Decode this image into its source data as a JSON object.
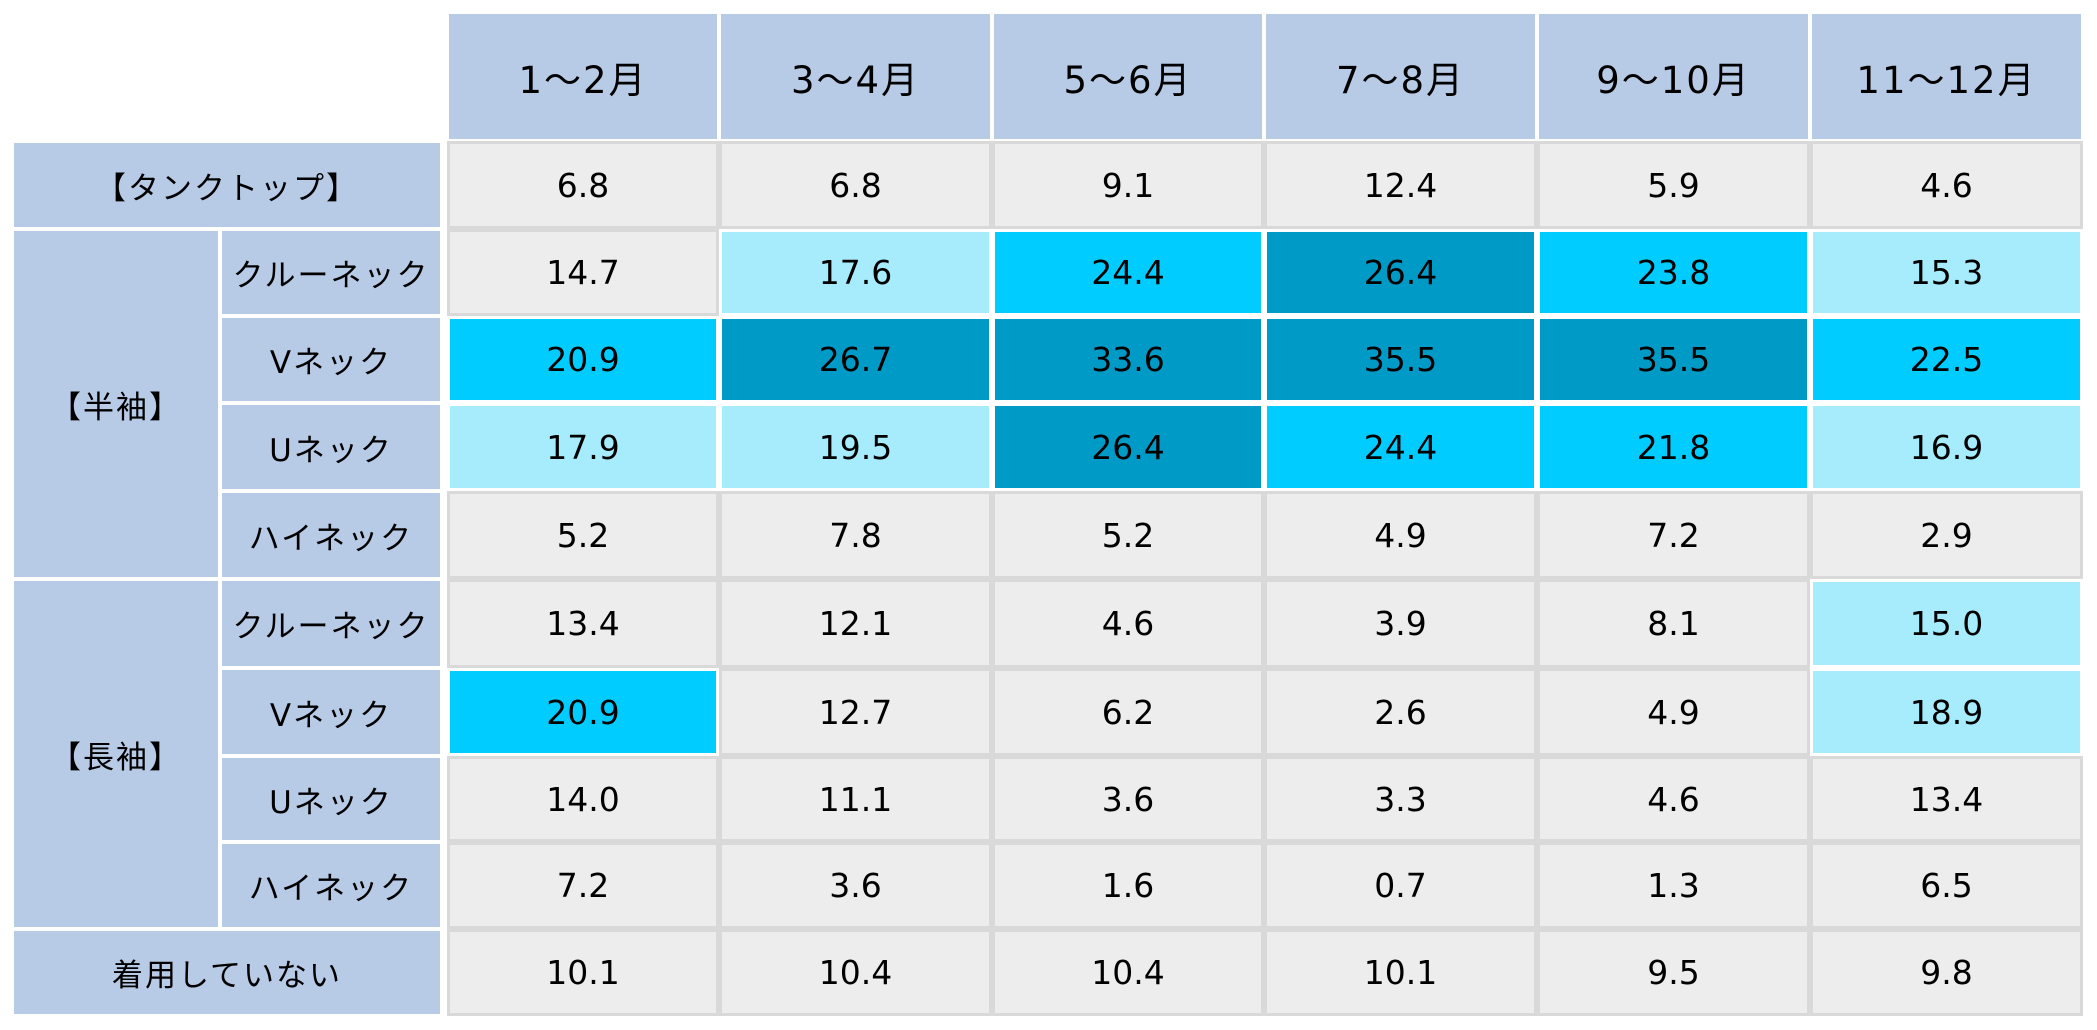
{
  "palette": {
    "header_bg": "#b7cae6",
    "neutral_bg": "#ededed",
    "neutral_border": "#d9d9d9",
    "light_bg": "#a6ecfd",
    "mid_bg": "#00ccff",
    "dark_bg": "#009ac6"
  },
  "chart_data": {
    "type": "heatmap",
    "title": "",
    "columns": [
      "1～2月",
      "3～4月",
      "5～6月",
      "7～8月",
      "9～10月",
      "11～12月"
    ],
    "groups": [
      {
        "name": "【タンクトップ】",
        "rows": [
          ""
        ]
      },
      {
        "name": "【半袖】",
        "rows": [
          "クルーネック",
          "Vネック",
          "Uネック",
          "ハイネック"
        ]
      },
      {
        "name": "【長袖】",
        "rows": [
          "クルーネック",
          "Vネック",
          "Uネック",
          "ハイネック"
        ]
      },
      {
        "name": "着用していない",
        "rows": [
          ""
        ]
      }
    ],
    "values": [
      [
        6.8,
        6.8,
        9.1,
        12.4,
        5.9,
        4.6
      ],
      [
        14.7,
        17.6,
        24.4,
        26.4,
        23.8,
        15.3
      ],
      [
        20.9,
        26.7,
        33.6,
        35.5,
        35.5,
        22.5
      ],
      [
        17.9,
        19.5,
        26.4,
        24.4,
        21.8,
        16.9
      ],
      [
        5.2,
        7.8,
        5.2,
        4.9,
        7.2,
        2.9
      ],
      [
        13.4,
        12.1,
        4.6,
        3.9,
        8.1,
        15.0
      ],
      [
        20.9,
        12.7,
        6.2,
        2.6,
        4.9,
        18.9
      ],
      [
        14.0,
        11.1,
        3.6,
        3.3,
        4.6,
        13.4
      ],
      [
        7.2,
        3.6,
        1.6,
        0.7,
        1.3,
        6.5
      ],
      [
        10.1,
        10.4,
        10.4,
        10.1,
        9.5,
        9.8
      ]
    ],
    "shade_levels": [
      "neutral",
      "light",
      "mid",
      "dark"
    ],
    "shading": [
      [
        0,
        0,
        0,
        0,
        0,
        0
      ],
      [
        0,
        1,
        2,
        3,
        2,
        1
      ],
      [
        2,
        3,
        3,
        3,
        3,
        2
      ],
      [
        1,
        1,
        3,
        2,
        2,
        1
      ],
      [
        0,
        0,
        0,
        0,
        0,
        0
      ],
      [
        0,
        0,
        0,
        0,
        0,
        1
      ],
      [
        2,
        0,
        0,
        0,
        0,
        1
      ],
      [
        0,
        0,
        0,
        0,
        0,
        0
      ],
      [
        0,
        0,
        0,
        0,
        0,
        0
      ],
      [
        0,
        0,
        0,
        0,
        0,
        0
      ]
    ]
  }
}
